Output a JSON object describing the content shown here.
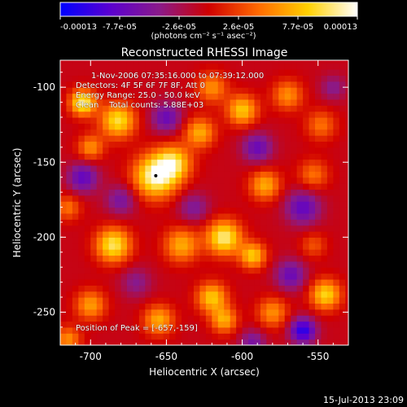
{
  "chart_data": {
    "type": "heatmap",
    "title": "Reconstructed RHESSI Image",
    "xlabel": "Heliocentric X (arcsec)",
    "ylabel": "Heliocentric Y (arcsec)",
    "xlim": [
      -720,
      -530
    ],
    "ylim": [
      -272,
      -82
    ],
    "x_ticks": [
      -700,
      -650,
      -600,
      -550
    ],
    "y_ticks": [
      -100,
      -150,
      -200,
      -250
    ],
    "x_tick_labels": [
      "-700",
      "-650",
      "-600",
      "-550"
    ],
    "y_tick_labels": [
      "-100",
      "-150",
      "-200",
      "-250"
    ],
    "colorbar": {
      "range": [
        -0.00013,
        0.00013
      ],
      "tick_labels": [
        "-0.00013",
        "-7.7e-05",
        "-2.6e-05",
        "2.6e-05",
        "7.7e-05",
        "0.00013"
      ],
      "units": "(photons cm⁻² s⁻¹ asec⁻²)",
      "colors": [
        "#0000ff",
        "#5a00d0",
        "#8a1a8a",
        "#d00000",
        "#ff6a00",
        "#ffd000",
        "#ffffff"
      ]
    },
    "annotations": [
      "1-Nov-2006 07:35:16.000 to 07:39:12.000",
      "Detectors: 4F 5F 6F 7F 8F, Att 0",
      "Energy Range: 25.0 - 50.0 keV",
      "Clean    Total counts: 5.88E+03",
      "Position of Peak = [-657,-159]"
    ],
    "peak": {
      "x": -657,
      "y": -159
    },
    "blobs": [
      {
        "x": -705,
        "y": -110,
        "amp": 0.9,
        "s": 6
      },
      {
        "x": -682,
        "y": -122,
        "amp": 0.8,
        "s": 8
      },
      {
        "x": -700,
        "y": -140,
        "amp": 0.5,
        "s": 6
      },
      {
        "x": -657,
        "y": -159,
        "amp": 1.0,
        "s": 10
      },
      {
        "x": -645,
        "y": -150,
        "amp": 0.7,
        "s": 8
      },
      {
        "x": -628,
        "y": -130,
        "amp": 0.6,
        "s": 7
      },
      {
        "x": -620,
        "y": -100,
        "amp": 0.5,
        "s": 7
      },
      {
        "x": -600,
        "y": -115,
        "amp": 0.7,
        "s": 7
      },
      {
        "x": -570,
        "y": -105,
        "amp": 0.5,
        "s": 7
      },
      {
        "x": -548,
        "y": -125,
        "amp": 0.4,
        "s": 7
      },
      {
        "x": -585,
        "y": -165,
        "amp": 0.6,
        "s": 7
      },
      {
        "x": -553,
        "y": -158,
        "amp": 0.4,
        "s": 7
      },
      {
        "x": -715,
        "y": -180,
        "amp": 0.4,
        "s": 6
      },
      {
        "x": -685,
        "y": -205,
        "amp": 0.85,
        "s": 8
      },
      {
        "x": -640,
        "y": -205,
        "amp": 0.6,
        "s": 8
      },
      {
        "x": -612,
        "y": -200,
        "amp": 0.9,
        "s": 8
      },
      {
        "x": -593,
        "y": -212,
        "amp": 0.7,
        "s": 6
      },
      {
        "x": -620,
        "y": -240,
        "amp": 0.7,
        "s": 7
      },
      {
        "x": -612,
        "y": -255,
        "amp": 0.6,
        "s": 6
      },
      {
        "x": -655,
        "y": -255,
        "amp": 0.6,
        "s": 7
      },
      {
        "x": -700,
        "y": -245,
        "amp": 0.55,
        "s": 7
      },
      {
        "x": -580,
        "y": -250,
        "amp": 0.5,
        "s": 7
      },
      {
        "x": -545,
        "y": -238,
        "amp": 0.75,
        "s": 7
      },
      {
        "x": -553,
        "y": -205,
        "amp": 0.3,
        "s": 6
      },
      {
        "x": -715,
        "y": -268,
        "amp": 0.5,
        "s": 6
      },
      {
        "x": -650,
        "y": -120,
        "amp": -0.5,
        "s": 7
      },
      {
        "x": -705,
        "y": -160,
        "amp": -0.55,
        "s": 7
      },
      {
        "x": -680,
        "y": -175,
        "amp": -0.4,
        "s": 7
      },
      {
        "x": -590,
        "y": -140,
        "amp": -0.5,
        "s": 7
      },
      {
        "x": -560,
        "y": -180,
        "amp": -0.55,
        "s": 8
      },
      {
        "x": -568,
        "y": -225,
        "amp": -0.5,
        "s": 7
      },
      {
        "x": -560,
        "y": -262,
        "amp": -0.8,
        "s": 6
      },
      {
        "x": -632,
        "y": -180,
        "amp": -0.35,
        "s": 7
      },
      {
        "x": -670,
        "y": -230,
        "amp": -0.3,
        "s": 7
      },
      {
        "x": -593,
        "y": -270,
        "amp": -0.4,
        "s": 6
      },
      {
        "x": -540,
        "y": -100,
        "amp": -0.3,
        "s": 6
      }
    ]
  },
  "footer": {
    "timestamp": "15-Jul-2013 23:09"
  }
}
